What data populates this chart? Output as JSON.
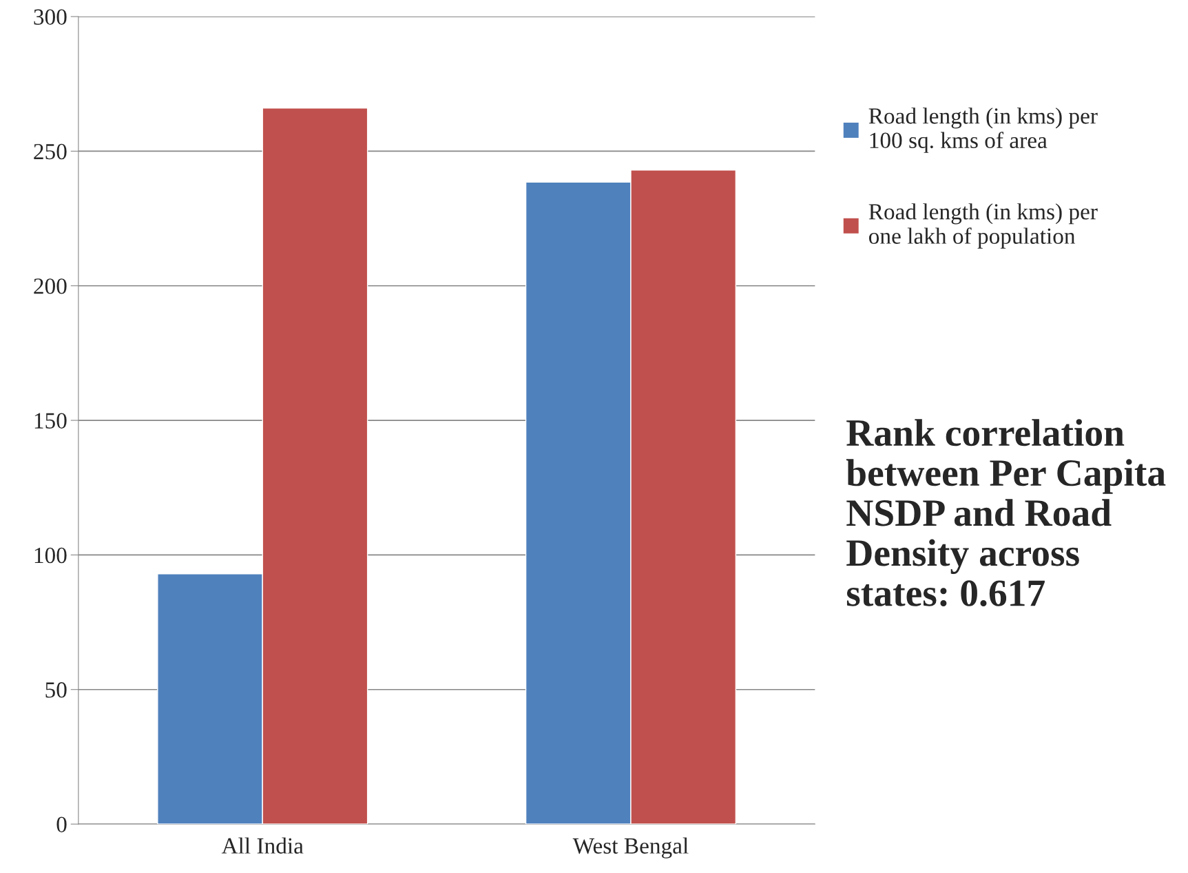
{
  "chart_data": {
    "type": "bar",
    "categories": [
      "All India",
      "West Bengal"
    ],
    "series": [
      {
        "name": "Road length (in kms) per\n100 sq. kms of area",
        "color": "#4f81bd",
        "values": [
          93,
          238.5
        ]
      },
      {
        "name": "Road length (in kms) per\none lakh of population",
        "color": "#c0504d",
        "values": [
          266,
          243
        ]
      }
    ],
    "ylim": [
      0,
      300
    ],
    "yticks": [
      0,
      50,
      100,
      150,
      200,
      250,
      300
    ],
    "grid": "y",
    "legend": "right",
    "annotations": [
      "Rank correlation between Per Capita NSDP and Road Density across states: 0.617"
    ]
  }
}
